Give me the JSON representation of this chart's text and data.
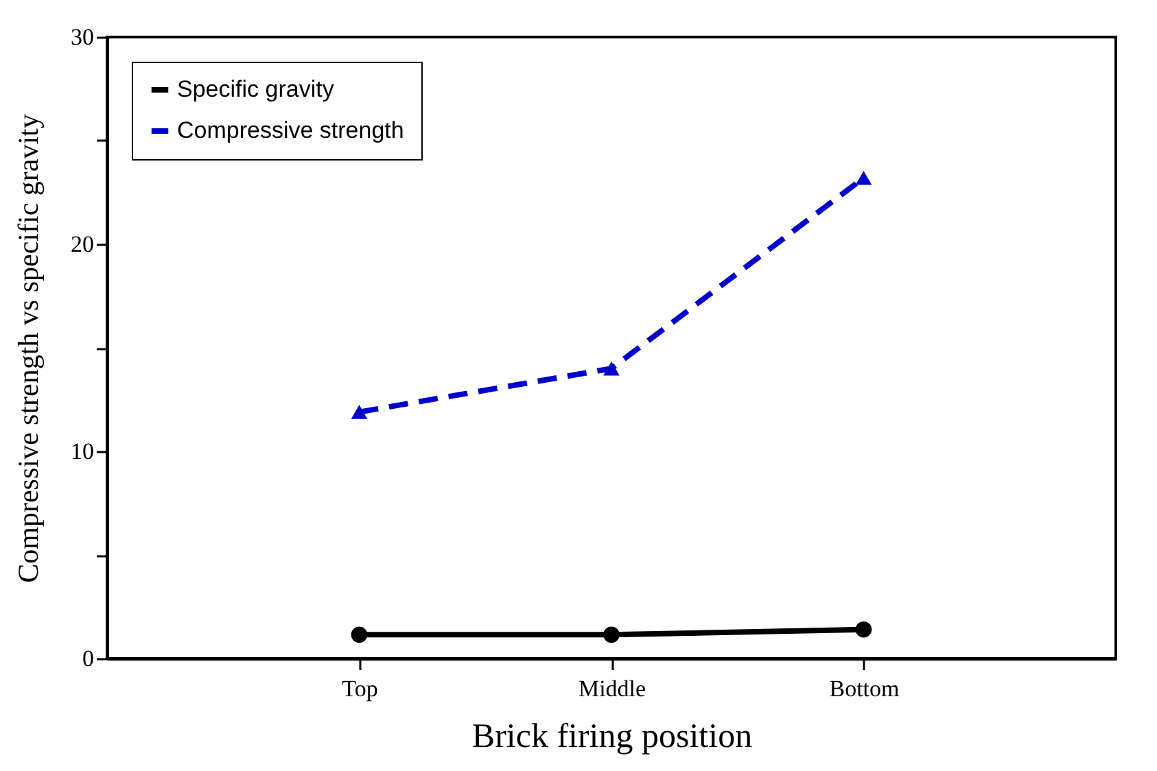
{
  "chart_data": {
    "type": "line",
    "xlabel": "Brick firing position",
    "ylabel": "Compressive strength vs specific gravity",
    "categories": [
      "Top",
      "Middle",
      "Bottom"
    ],
    "series": [
      {
        "name": "Specific gravity",
        "color": "#000000",
        "values": [
          1.15,
          1.15,
          1.4
        ],
        "marker": "circle",
        "line_style": "solid"
      },
      {
        "name": "Compressive strength",
        "color": "#0000cc",
        "values": [
          11.9,
          14.0,
          23.2
        ],
        "marker": "triangle",
        "line_style": "dashed"
      }
    ],
    "ylim": [
      0,
      30
    ],
    "yticks": [
      0,
      {
        "value": 5,
        "label": null
      },
      10,
      {
        "value": 15,
        "label": null
      },
      20,
      {
        "value": 25,
        "label": null
      },
      30
    ],
    "legend": "top left",
    "grid": false
  }
}
